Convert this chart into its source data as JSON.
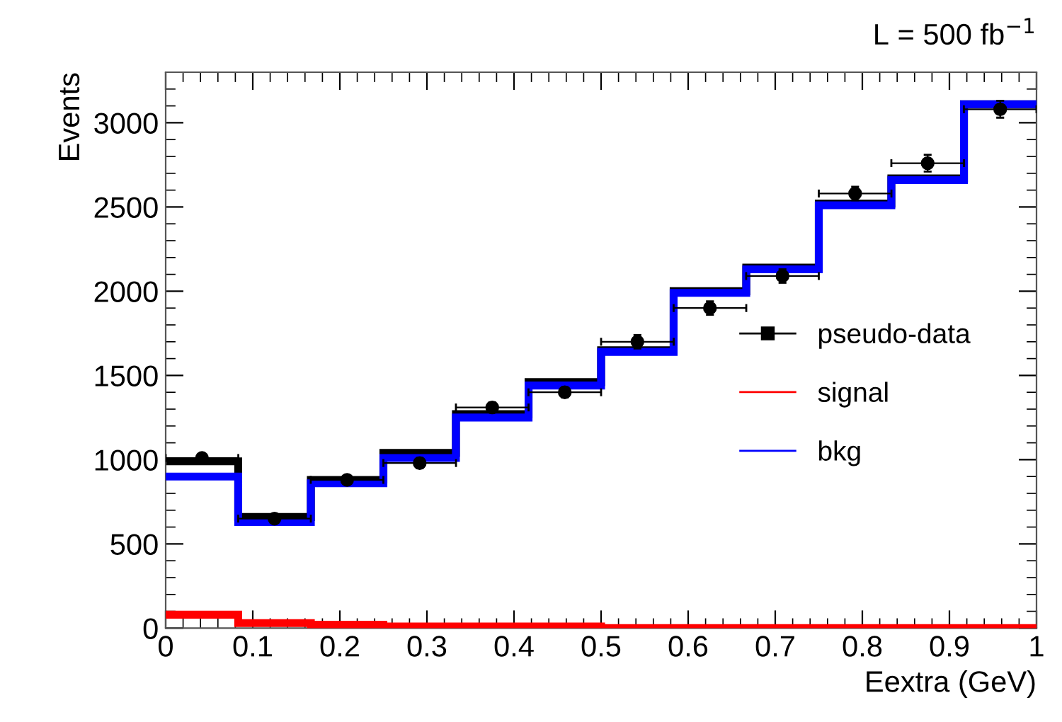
{
  "chart_data": {
    "type": "histogram",
    "title": "L = 500 fb$^{−1}$",
    "xlabel": "Eextra (GeV)",
    "ylabel": "Events",
    "bins": [
      0,
      0.0833,
      0.1667,
      0.25,
      0.3333,
      0.4167,
      0.5,
      0.5833,
      0.6667,
      0.75,
      0.8333,
      0.9167,
      1
    ],
    "series": [
      {
        "color": "#000000",
        "values": [
          990,
          660,
          880,
          1040,
          1270,
          1460,
          1650,
          2000,
          2140,
          2520,
          2670,
          3110
        ]
      },
      {
        "name": "pseudo-data",
        "type": "scatter",
        "color": "#000000",
        "x": [
          0.0417,
          0.125,
          0.2083,
          0.2917,
          0.375,
          0.4583,
          0.5417,
          0.625,
          0.7083,
          0.7917,
          0.875,
          0.9583
        ],
        "values": [
          1010,
          650,
          880,
          980,
          1310,
          1400,
          1700,
          1900,
          2090,
          2580,
          2760,
          3080
        ],
        "errors": [
          20,
          20,
          20,
          30,
          30,
          30,
          40,
          40,
          40,
          40,
          50,
          50
        ],
        "xerrors": [
          0.0417,
          0.0417,
          0.0417,
          0.0417,
          0.0417,
          0.0417,
          0.0417,
          0.0417,
          0.0417,
          0.0417,
          0.0417,
          0.0417
        ]
      },
      {
        "name": "signal",
        "color": "#ff0000",
        "values": [
          80,
          30,
          20,
          10,
          10,
          10,
          0,
          0,
          0,
          0,
          0,
          0
        ]
      },
      {
        "name": "bkg",
        "color": "#0000ff",
        "values": [
          900,
          630,
          860,
          1010,
          1250,
          1440,
          1640,
          1990,
          2130,
          2510,
          2660,
          3110
        ]
      }
    ],
    "xlim": [
      0,
      1
    ],
    "ylim": [
      0,
      3300
    ],
    "xticks": [
      0,
      0.1,
      0.2,
      0.3,
      0.4,
      0.5,
      0.6,
      0.7,
      0.8,
      0.9,
      1
    ],
    "yticks": [
      0,
      500,
      1000,
      1500,
      2000,
      2500,
      3000
    ],
    "marker": "circle",
    "legend": "right",
    "grid": false
  }
}
